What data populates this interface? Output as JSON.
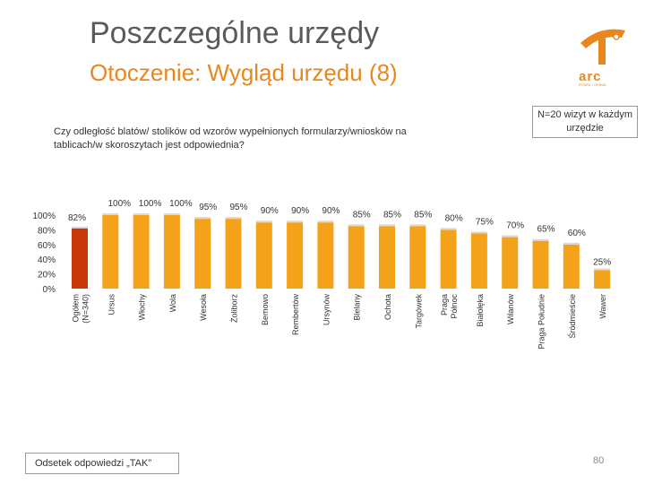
{
  "header": {
    "title": "Poszczególne urzędy",
    "subtitle": "Otoczenie: Wygląd urzędu (8)"
  },
  "logo": {
    "text": "arc",
    "subtext": "RYNEK I OPINIA"
  },
  "note": "N=20 wizyt w każdym urzędzie",
  "question": "Czy odległość blatów/ stolików od wzorów wypełnionych formularzy/wniosków na tablicach/w skoroszytach jest odpowiednia?",
  "legend": "Odsetek odpowiedzi „TAK”",
  "page_number": "80",
  "colors": {
    "highlight": "#c8380a",
    "bar": "#f5a21b",
    "baseline": "#d9d9d9",
    "accent": "#e8871e"
  },
  "chart_data": {
    "type": "bar",
    "categories": [
      "Ogółem (N=340)",
      "Ursus",
      "Włochy",
      "Wola",
      "Wesoła",
      "Żoliborz",
      "Bemowo",
      "Rembertów",
      "Ursynów",
      "Bielany",
      "Ochota",
      "Targówek",
      "Praga Północ",
      "Białołęka",
      "Wilanów",
      "Praga Południe",
      "Śródmieście",
      "Wawer"
    ],
    "category_lines": [
      [
        "Ogółem",
        "(N=340)"
      ],
      [
        "Ursus"
      ],
      [
        "Włochy"
      ],
      [
        "Wola"
      ],
      [
        "Wesoła"
      ],
      [
        "Żoliborz"
      ],
      [
        "Bemowo"
      ],
      [
        "Rembertów"
      ],
      [
        "Ursynów"
      ],
      [
        "Bielany"
      ],
      [
        "Ochota"
      ],
      [
        "Targówek"
      ],
      [
        "Praga",
        "Północ"
      ],
      [
        "Białołęka"
      ],
      [
        "Wilanów"
      ],
      [
        "Praga Południe"
      ],
      [
        "Śródmieście"
      ],
      [
        "Wawer"
      ]
    ],
    "values": [
      82,
      100,
      100,
      100,
      95,
      95,
      90,
      90,
      90,
      85,
      85,
      85,
      80,
      75,
      70,
      65,
      60,
      25
    ],
    "labels": [
      "82%",
      "100%",
      "100%",
      "100%",
      "95%",
      "95%",
      "90%",
      "90%",
      "90%",
      "85%",
      "85%",
      "85%",
      "80%",
      "75%",
      "70%",
      "65%",
      "60%",
      "25%"
    ],
    "y_ticks": [
      "0%",
      "20%",
      "40%",
      "60%",
      "80%",
      "100%"
    ],
    "ylim": [
      0,
      100
    ],
    "highlight_index": 0
  }
}
